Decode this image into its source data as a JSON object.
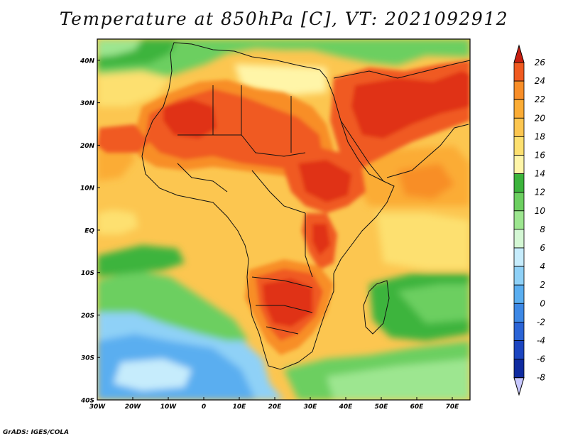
{
  "map": {
    "title": "Temperature at 850hPa [C], VT: 2021092912",
    "credit": "GrADS: IGES/COLA",
    "lat_labels": [
      "40N",
      "30N",
      "20N",
      "10N",
      "EQ",
      "10S",
      "20S",
      "30S",
      "40S"
    ],
    "lat_values": [
      40,
      30,
      20,
      10,
      0,
      -10,
      -20,
      -30,
      -40
    ],
    "lon_labels": [
      "30W",
      "20W",
      "10W",
      "0",
      "10E",
      "20E",
      "30E",
      "40E",
      "50E",
      "60E",
      "70E"
    ],
    "lon_values": [
      -30,
      -20,
      -10,
      0,
      10,
      20,
      30,
      40,
      50,
      60,
      70
    ],
    "extent": {
      "lon_min": -30,
      "lon_max": 75,
      "lat_min": -40,
      "lat_max": 45
    }
  },
  "colorbar": {
    "labels": [
      "26",
      "24",
      "22",
      "20",
      "18",
      "16",
      "14",
      "12",
      "10",
      "8",
      "6",
      "4",
      "2",
      "0",
      "-2",
      "-4",
      "-6",
      "-8"
    ],
    "colors": [
      "#e03018",
      "#f05a20",
      "#f88e28",
      "#fbac35",
      "#fcc650",
      "#fde070",
      "#fff5a8",
      "#3cb43c",
      "#6ccf60",
      "#9de690",
      "#d4f7d4",
      "#c6ecfc",
      "#8fd1f7",
      "#5aaef0",
      "#3d88e5",
      "#2b64d6",
      "#1c45c0",
      "#0f2ba0",
      "#0a1c78"
    ],
    "extend_top_color": "#c81e10",
    "extend_bottom_color": "#c8c8ff"
  }
}
